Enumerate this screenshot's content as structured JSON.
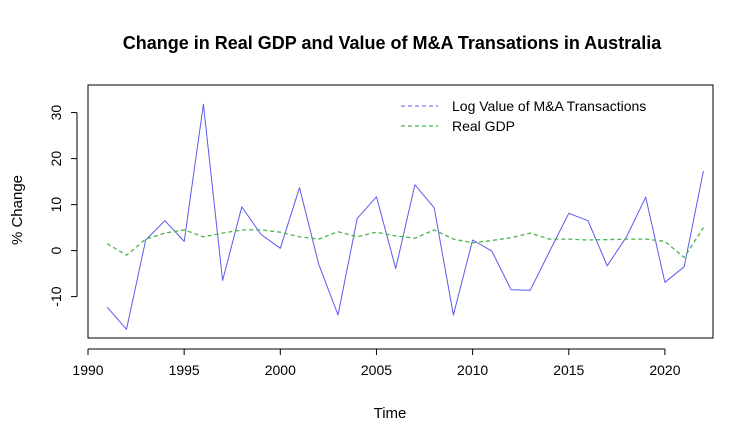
{
  "chart_data": {
    "type": "line",
    "title": "Change in Real GDP and Value of M&A Transations in Australia",
    "xlabel": "Time",
    "ylabel": "% Change",
    "xlim": [
      1990,
      2022.5
    ],
    "ylim": [
      -19,
      36
    ],
    "x_ticks": [
      1990,
      1995,
      2000,
      2005,
      2010,
      2015,
      2020
    ],
    "y_ticks": [
      -10,
      0,
      10,
      20,
      30
    ],
    "grid": false,
    "legend_position": "top-right",
    "x": [
      1991,
      1992,
      1993,
      1994,
      1995,
      1996,
      1997,
      1998,
      1999,
      2000,
      2001,
      2002,
      2003,
      2004,
      2005,
      2006,
      2007,
      2008,
      2009,
      2010,
      2011,
      2012,
      2013,
      2014,
      2015,
      2016,
      2017,
      2018,
      2019,
      2020,
      2021,
      2022
    ],
    "series": [
      {
        "name": "Log Value of M&A Transactions",
        "color": "#5a5af0",
        "line_style": "solid",
        "values": [
          -12.3,
          -17.1,
          2.3,
          6.5,
          2.0,
          31.8,
          -6.5,
          9.5,
          3.5,
          0.5,
          13.7,
          -3.0,
          -14.0,
          7.0,
          11.7,
          -3.9,
          14.3,
          9.3,
          -14.0,
          2.3,
          -0.1,
          -8.5,
          -8.6,
          -0.2,
          8.1,
          6.5,
          -3.3,
          3.0,
          11.6,
          -6.9,
          -3.5,
          17.3
        ]
      },
      {
        "name": "Real GDP",
        "color": "#49b449",
        "line_style": "dashed",
        "values": [
          1.5,
          -1.0,
          2.5,
          3.8,
          4.5,
          3.0,
          3.8,
          4.5,
          4.5,
          4.0,
          3.0,
          2.5,
          4.1,
          3.0,
          4.0,
          3.2,
          2.7,
          4.5,
          2.5,
          1.7,
          2.2,
          2.8,
          3.8,
          2.5,
          2.5,
          2.3,
          2.4,
          2.5,
          2.5,
          2.0,
          -1.5,
          5.0
        ]
      }
    ]
  }
}
